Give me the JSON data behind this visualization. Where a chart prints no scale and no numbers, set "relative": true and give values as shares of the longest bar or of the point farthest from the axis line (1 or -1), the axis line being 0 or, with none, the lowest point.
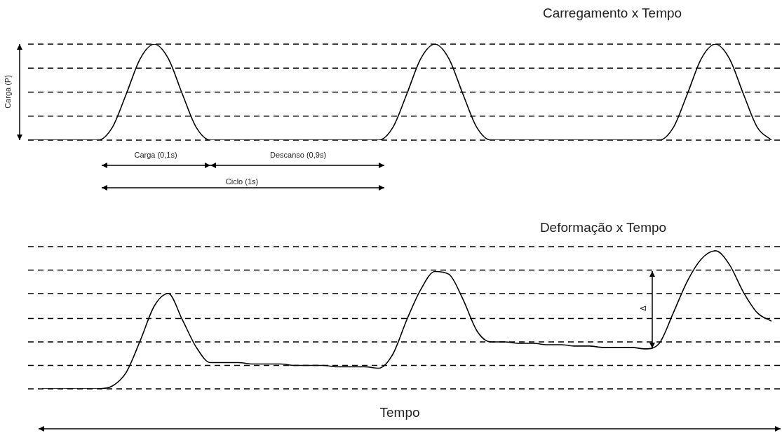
{
  "chart_data": [
    {
      "type": "line",
      "title": "Carregamento x Tempo",
      "ylabel": "Carga (P)",
      "relative": true,
      "marker": "none",
      "color": "#000000",
      "categories": [
        null,
        null,
        null,
        null,
        null,
        null,
        null,
        null,
        null,
        null,
        null,
        null,
        null,
        null,
        null,
        null,
        null,
        null,
        null,
        null,
        null,
        null,
        null,
        null,
        null,
        null,
        null,
        null,
        null,
        null,
        null,
        null,
        null,
        null,
        null,
        null,
        null,
        null,
        null,
        null,
        null,
        null,
        null,
        null,
        null,
        null,
        null,
        null,
        null,
        null,
        null,
        null,
        null,
        null
      ],
      "values": [
        0,
        0,
        0,
        0,
        0,
        0,
        0.13,
        0.48,
        0.85,
        1,
        0.85,
        0.48,
        0.13,
        0,
        0,
        0,
        0,
        0,
        0,
        0,
        0,
        0,
        0,
        0,
        0,
        0,
        0.13,
        0.48,
        0.85,
        1,
        0.85,
        0.48,
        0.13,
        0,
        0,
        0,
        0,
        0,
        0,
        0,
        0,
        0,
        0,
        0,
        0,
        0,
        0.13,
        0.48,
        0.85,
        1,
        0.85,
        0.48,
        0.13,
        0
      ],
      "ref_lines": [
        {
          "axis": "y",
          "value": 0,
          "line_style": "dashed",
          "color": "#000000"
        },
        {
          "axis": "y",
          "value": 0.25,
          "line_style": "dashed",
          "color": "#000000"
        },
        {
          "axis": "y",
          "value": 0.5,
          "line_style": "dashed",
          "color": "#000000"
        },
        {
          "axis": "y",
          "value": 0.75,
          "line_style": "dashed",
          "color": "#000000"
        },
        {
          "axis": "y",
          "value": 1,
          "line_style": "dashed",
          "color": "#000000"
        }
      ],
      "annotations": [
        "Carga (0,1s)",
        "Descanso (0,9s)",
        "Ciclo (1s)"
      ]
    },
    {
      "type": "line",
      "title": "Deformação x Tempo",
      "xlabel": "Tempo",
      "relative": true,
      "marker": "none",
      "color": "#000000",
      "categories": [
        null,
        null,
        null,
        null,
        null,
        null,
        null,
        null,
        null,
        null,
        null,
        null,
        null,
        null,
        null,
        null,
        null,
        null,
        null,
        null,
        null,
        null,
        null,
        null,
        null,
        null,
        null,
        null,
        null,
        null,
        null,
        null,
        null,
        null,
        null,
        null,
        null,
        null,
        null,
        null,
        null,
        null,
        null,
        null,
        null,
        null,
        null,
        null,
        null,
        null,
        null,
        null,
        null,
        null
      ],
      "values": [
        null,
        0,
        0,
        0,
        0,
        0,
        0.02,
        0.12,
        0.35,
        0.6,
        0.69,
        0.5,
        0.3,
        0.19,
        0.19,
        0.19,
        0.18,
        0.18,
        0.18,
        0.17,
        0.17,
        0.17,
        0.16,
        0.16,
        0.16,
        0.15,
        0.25,
        0.5,
        0.72,
        0.85,
        0.83,
        0.65,
        0.42,
        0.34,
        0.34,
        0.33,
        0.33,
        0.32,
        0.32,
        0.31,
        0.31,
        0.3,
        0.3,
        0.3,
        0.29,
        0.33,
        0.55,
        0.78,
        0.94,
        1,
        0.9,
        0.7,
        0.55,
        0.49
      ],
      "ref_lines": [
        {
          "axis": "y",
          "value": 0,
          "line_style": "dashed",
          "color": "#000000"
        },
        {
          "axis": "y",
          "value": 0.17,
          "line_style": "dashed",
          "color": "#000000"
        },
        {
          "axis": "y",
          "value": 0.34,
          "line_style": "dashed",
          "color": "#000000"
        },
        {
          "axis": "y",
          "value": 0.51,
          "line_style": "dashed",
          "color": "#000000"
        },
        {
          "axis": "y",
          "value": 0.69,
          "line_style": "dashed",
          "color": "#000000"
        },
        {
          "axis": "y",
          "value": 0.86,
          "line_style": "dashed",
          "color": "#000000"
        },
        {
          "axis": "y",
          "value": 1.03,
          "line_style": "dashed",
          "color": "#000000"
        }
      ],
      "annotations": [
        "Δ"
      ]
    }
  ]
}
